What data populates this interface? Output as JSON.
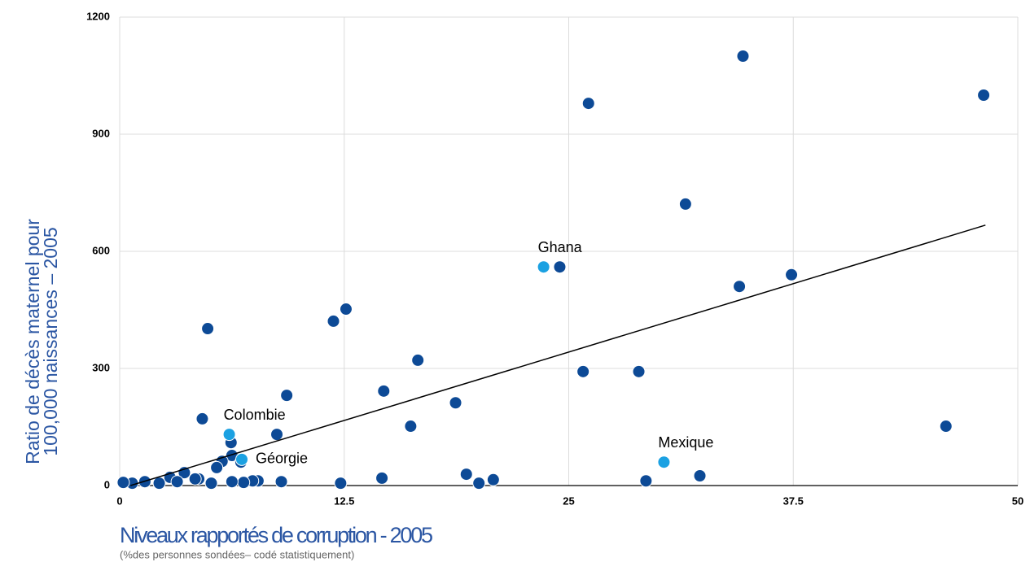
{
  "chart_data": {
    "type": "scatter",
    "ylabel": [
      "Ratio de décès maternel pour",
      "100,000 naissances – 2005"
    ],
    "xlabel": "Niveaux rapportés de corruption - 2005",
    "xlabel_note": "(%des personnes sondées– codé statistiquement)",
    "xlim": [
      0,
      50
    ],
    "ylim": [
      0,
      1200
    ],
    "xticks": [
      0,
      12.5,
      25,
      37.5,
      50
    ],
    "yticks": [
      0,
      300,
      600,
      900,
      1200
    ],
    "grid": true,
    "series": [
      {
        "color": "#0d4a96",
        "x": [
          34.7,
          48.1,
          26.1,
          31.5,
          24.5,
          34.5,
          37.4,
          12.6,
          11.9,
          4.9,
          16.6,
          25.8,
          28.9,
          14.7,
          9.3,
          18.7,
          4.6,
          16.2,
          46.0,
          8.75,
          6.2,
          6.25,
          6.75,
          5.7,
          5.4,
          32.3,
          19.3,
          14.6,
          20.8,
          20.0,
          29.3,
          12.3,
          9.0,
          7.7,
          7.4,
          6.9,
          6.25,
          5.1,
          4.4,
          4.2,
          3.6,
          2.8,
          3.2,
          2.2,
          1.4,
          0.7,
          0.2
        ],
        "values": [
          1100,
          1000,
          979,
          721,
          560,
          510,
          540,
          452,
          421,
          402,
          321,
          292,
          292,
          242,
          231,
          212,
          171,
          152,
          152,
          131,
          110,
          77,
          60,
          62,
          46,
          25,
          29,
          19,
          15,
          6,
          12,
          6,
          10,
          12,
          12,
          8,
          10,
          6,
          17,
          17,
          33,
          21,
          10,
          6,
          10,
          6,
          8
        ]
      },
      {
        "color": "#1ba1e2",
        "x": [
          23.6,
          6.1,
          6.8,
          30.3
        ],
        "values": [
          560,
          131,
          67,
          60
        ],
        "labels": [
          "Ghana",
          "Colombie",
          "Géorgie",
          "Mexique"
        ]
      }
    ],
    "trendline": {
      "color": "#000000",
      "x": [
        0.6,
        48.2
      ],
      "y": [
        0,
        667
      ]
    }
  }
}
